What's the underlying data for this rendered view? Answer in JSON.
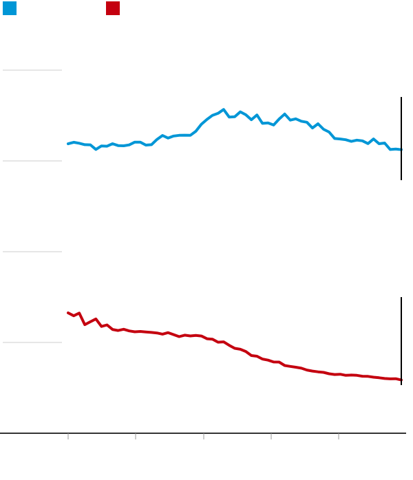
{
  "chart_data": {
    "type": "line",
    "title": "",
    "xlabel": "",
    "ylabel": "",
    "grid": true,
    "legend_placement": "top-left",
    "x": [
      0,
      1,
      2,
      3,
      4,
      5,
      6,
      7,
      8,
      9,
      10,
      11,
      12,
      13,
      14,
      15,
      16,
      17,
      18,
      19,
      20,
      21,
      22,
      23,
      24,
      25,
      26,
      27,
      28,
      29,
      30,
      31,
      32,
      33,
      34,
      35,
      36,
      37,
      38,
      39,
      40,
      41,
      42,
      43,
      44,
      45,
      46,
      47,
      48,
      49,
      50,
      51,
      52,
      53,
      54,
      55,
      56,
      57,
      58,
      59,
      60
    ],
    "xlim": [
      0,
      60
    ],
    "ylim": [
      0,
      100
    ],
    "series": [
      {
        "color": "#0096d6",
        "values": [
          56.8,
          58.2,
          57.3,
          56.0,
          55.9,
          51.7,
          54.9,
          54.6,
          56.9,
          55.2,
          55.0,
          55.8,
          58.3,
          58.3,
          55.6,
          56.0,
          60.8,
          64.4,
          62.0,
          63.9,
          64.5,
          64.6,
          64.5,
          68.2,
          74.6,
          79.0,
          82.7,
          84.5,
          88.0,
          81.1,
          81.4,
          85.9,
          83.2,
          78.7,
          83.0,
          75.4,
          75.8,
          73.9,
          79.3,
          83.9,
          78.3,
          79.5,
          77.3,
          76.4,
          71.2,
          75.0,
          70.0,
          67.5,
          61.6,
          61.2,
          60.5,
          59.0,
          60.1,
          59.5,
          57.0,
          61.2,
          56.9,
          57.5,
          51.6,
          52.0,
          51.5
        ],
        "offset_band": 0
      },
      {
        "color": "#c4000f",
        "values": [
          70.6,
          68.1,
          70.4,
          60.5,
          63.0,
          65.4,
          59.0,
          60.3,
          56.4,
          55.5,
          56.6,
          55.2,
          54.4,
          54.7,
          54.3,
          53.9,
          53.4,
          52.4,
          53.7,
          52.0,
          50.3,
          51.5,
          50.9,
          51.3,
          50.8,
          48.5,
          48.1,
          45.5,
          45.8,
          42.9,
          40.3,
          39.5,
          37.6,
          34.1,
          33.5,
          31.1,
          30.2,
          28.6,
          28.5,
          25.6,
          24.8,
          24.1,
          23.3,
          21.7,
          20.8,
          20.2,
          19.7,
          18.5,
          17.9,
          18.1,
          17.2,
          17.4,
          17.2,
          16.4,
          16.3,
          15.6,
          15.1,
          14.5,
          14.2,
          14.3,
          13.2
        ],
        "offset_band": 1
      }
    ]
  },
  "colors": {
    "series_a": "#0096d6",
    "series_b": "#c4000f",
    "grid": "#cccccc",
    "axis": "#333333"
  }
}
